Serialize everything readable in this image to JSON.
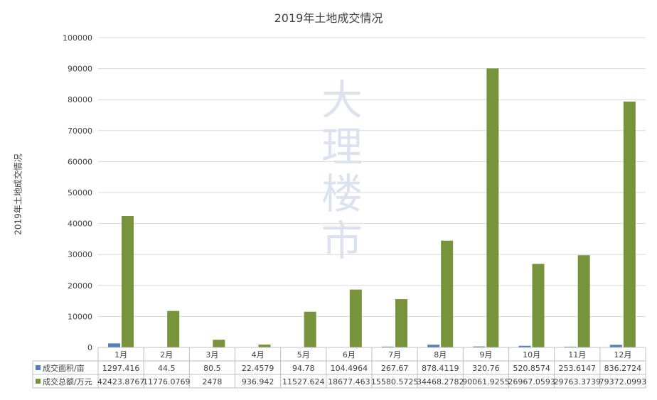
{
  "chart_data": {
    "type": "bar",
    "title": "2019年土地成交情况",
    "ylabel": "2019年土地成交情况",
    "xlabel": "",
    "ylim": [
      0,
      100000
    ],
    "yticks": [
      "0",
      "10000",
      "20000",
      "30000",
      "40000",
      "50000",
      "60000",
      "70000",
      "80000",
      "90000",
      "100000"
    ],
    "grid": true,
    "legend": "data-table",
    "categories": [
      "1月",
      "2月",
      "3月",
      "4月",
      "5月",
      "6月",
      "7月",
      "8月",
      "9月",
      "10月",
      "11月",
      "12月"
    ],
    "series": [
      {
        "name": "成交面积/亩",
        "color": "#4f81bd",
        "values": [
          1297.416,
          44.5,
          80.5,
          22.4579,
          94.78,
          104.4964,
          267.67,
          878.4119,
          320.76,
          520.8574,
          253.6147,
          836.2724
        ],
        "labels": [
          "1297.416",
          "44.5",
          "80.5",
          "22.4579",
          "94.78",
          "104.4964",
          "267.67",
          "878.4119",
          "320.76",
          "520.8574",
          "253.6147",
          "836.2724"
        ]
      },
      {
        "name": "成交总额/万元",
        "color": "#77933c",
        "values": [
          42423.8767,
          11776.0769,
          2478,
          936.942,
          11527.624,
          18677.463,
          15580.5725,
          34468.2782,
          90061.9255,
          26967.0593,
          29763.3739,
          79372.0993
        ],
        "labels": [
          "42423.8767",
          "11776.0769",
          "2478",
          "936.942",
          "11527.624",
          "18677.463",
          "15580.5725",
          "34468.2782",
          "90061.9255",
          "26967.0593",
          "29763.3739",
          "79372.0993"
        ]
      }
    ]
  },
  "watermark": "大理楼市"
}
